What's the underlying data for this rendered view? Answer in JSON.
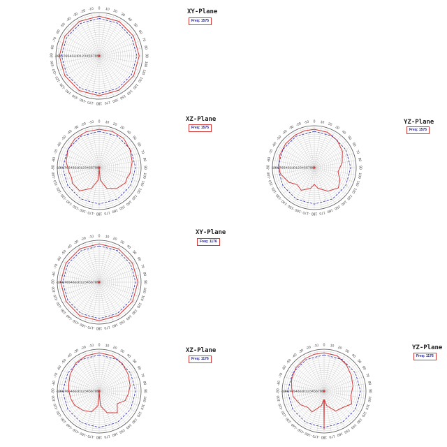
{
  "chart_data": [
    {
      "type": "polar-line",
      "title": "XY-Plane",
      "freq_label": "Freq: 1575",
      "angle_labels": [
        "0",
        "10",
        "20",
        "30",
        "40",
        "50",
        "60",
        "70",
        "80",
        "90",
        "100",
        "110",
        "120",
        "130",
        "140",
        "150",
        "160",
        "170",
        "180",
        "-170",
        "-160",
        "-150",
        "-140",
        "-130",
        "-120",
        "-110",
        "-100",
        "-90",
        "-80",
        "-70",
        "-60",
        "-50",
        "-40",
        "-30",
        "-20",
        "-10"
      ],
      "radial_labels": [
        "-10",
        "-9",
        "-8",
        "-7",
        "-6",
        "-5",
        "-4",
        "-3",
        "-2",
        "-1",
        "0",
        "1",
        "2",
        "3",
        "4",
        "5",
        "6",
        "7",
        "8",
        "9"
      ],
      "rlim": [
        -10,
        10
      ],
      "grid": true,
      "series": [
        {
          "color": "#d23a3a",
          "style": "solid",
          "angles_deg": [
            0,
            30,
            60,
            90,
            120,
            150,
            180,
            210,
            240,
            270,
            300,
            330
          ],
          "gain_dBi": [
            8.3,
            8.4,
            8.3,
            8.5,
            8.4,
            8.3,
            8.4,
            8.5,
            8.3,
            8.4,
            8.3,
            8.4
          ]
        },
        {
          "color": "#2a2aa5",
          "style": "dashed",
          "angles_deg": [
            0,
            30,
            60,
            90,
            120,
            150,
            180,
            210,
            240,
            270,
            300,
            330
          ],
          "gain_dBi": [
            7.3,
            7.4,
            7.3,
            7.4,
            7.3,
            7.3,
            7.4,
            7.3,
            7.3,
            7.4,
            7.3,
            7.3
          ]
        }
      ]
    },
    {
      "type": "polar-line",
      "title": "XZ-Plane",
      "freq_label": "Freq: 1575",
      "angle_labels": [
        "0",
        "10",
        "20",
        "30",
        "40",
        "50",
        "60",
        "70",
        "80",
        "90",
        "100",
        "110",
        "120",
        "130",
        "140",
        "150",
        "160",
        "170",
        "180",
        "-170",
        "-160",
        "-150",
        "-140",
        "-130",
        "-120",
        "-110",
        "-100",
        "-90",
        "-80",
        "-70",
        "-60",
        "-50",
        "-40",
        "-30",
        "-20",
        "-10"
      ],
      "radial_labels": [
        "-10",
        "-9",
        "-8",
        "-7",
        "-6",
        "-5",
        "-4",
        "-3",
        "-2",
        "-1",
        "0",
        "1",
        "2",
        "3",
        "4",
        "5",
        "6",
        "7",
        "8",
        "9"
      ],
      "rlim": [
        -10,
        10
      ],
      "grid": true,
      "series": [
        {
          "color": "#d23a3a",
          "style": "solid",
          "angles_deg": [
            0,
            20,
            40,
            60,
            80,
            100,
            110,
            120,
            140,
            160,
            175,
            180,
            185,
            200,
            220,
            240,
            250,
            260,
            280,
            300,
            320,
            340
          ],
          "gain_dBi": [
            8.3,
            8.4,
            8.2,
            7.0,
            6.0,
            5.0,
            4.2,
            4.5,
            3.0,
            0.5,
            -4.0,
            -9.5,
            -4.0,
            0.5,
            4.5,
            4.8,
            4.0,
            4.5,
            6.0,
            7.2,
            8.0,
            8.2
          ]
        },
        {
          "color": "#2a2aa5",
          "style": "dashed",
          "angles_deg": [
            0,
            30,
            60,
            90,
            120,
            150,
            180,
            210,
            240,
            270,
            300,
            330
          ],
          "gain_dBi": [
            7.3,
            7.4,
            7.3,
            7.4,
            7.3,
            7.3,
            7.4,
            7.3,
            7.3,
            7.4,
            7.3,
            7.3
          ]
        }
      ]
    },
    {
      "type": "polar-line",
      "title": "YZ-Plane",
      "freq_label": "Freq: 1575",
      "angle_labels": [
        "0",
        "10",
        "20",
        "30",
        "40",
        "50",
        "60",
        "70",
        "80",
        "90",
        "100",
        "110",
        "120",
        "130",
        "140",
        "150",
        "160",
        "170",
        "180",
        "-170",
        "-160",
        "-150",
        "-140",
        "-130",
        "-120",
        "-110",
        "-100",
        "-90",
        "-80",
        "-70",
        "-60",
        "-50",
        "-40",
        "-30",
        "-20",
        "-10"
      ],
      "radial_labels": [
        "-10",
        "-9",
        "-8",
        "-7",
        "-6",
        "-5",
        "-4",
        "-3",
        "-2",
        "-1",
        "0",
        "1",
        "2",
        "3",
        "4",
        "5",
        "6",
        "7",
        "8",
        "9"
      ],
      "rlim": [
        -10,
        10
      ],
      "grid": true,
      "series": [
        {
          "color": "#d23a3a",
          "style": "solid",
          "angles_deg": [
            0,
            20,
            40,
            60,
            80,
            100,
            115,
            130,
            150,
            170,
            180,
            190,
            210,
            225,
            240,
            260,
            275,
            290,
            310,
            330,
            345
          ],
          "gain_dBi": [
            8.3,
            8.0,
            7.0,
            5.5,
            3.5,
            1.5,
            3.5,
            5.0,
            3.0,
            0.0,
            -2.0,
            0.0,
            2.5,
            1.5,
            4.0,
            6.5,
            7.0,
            7.5,
            7.8,
            8.0,
            8.2
          ]
        },
        {
          "color": "#2a2aa5",
          "style": "dashed",
          "angles_deg": [
            0,
            30,
            60,
            90,
            120,
            150,
            180,
            210,
            240,
            270,
            300,
            330
          ],
          "gain_dBi": [
            7.3,
            7.4,
            7.3,
            7.4,
            7.3,
            7.3,
            7.4,
            7.3,
            7.3,
            7.4,
            7.3,
            7.3
          ]
        }
      ]
    },
    {
      "type": "polar-line",
      "title": "XY-Plane",
      "freq_label": "Freq: 1176",
      "angle_labels": [
        "0",
        "10",
        "20",
        "30",
        "40",
        "50",
        "60",
        "70",
        "80",
        "90",
        "100",
        "110",
        "120",
        "130",
        "140",
        "150",
        "160",
        "170",
        "180",
        "-170",
        "-160",
        "-150",
        "-140",
        "-130",
        "-120",
        "-110",
        "-100",
        "-90",
        "-80",
        "-70",
        "-60",
        "-50",
        "-40",
        "-30",
        "-20",
        "-10"
      ],
      "radial_labels": [
        "-10",
        "-9",
        "-8",
        "-7",
        "-6",
        "-5",
        "-4",
        "-3",
        "-2",
        "-1",
        "0",
        "1",
        "2",
        "3",
        "4",
        "5",
        "6",
        "7",
        "8",
        "9"
      ],
      "rlim": [
        -10,
        10
      ],
      "grid": true,
      "series": [
        {
          "color": "#d23a3a",
          "style": "solid",
          "angles_deg": [
            0,
            30,
            60,
            90,
            120,
            150,
            180,
            210,
            240,
            270,
            300,
            330
          ],
          "gain_dBi": [
            8.3,
            8.4,
            8.3,
            8.5,
            8.4,
            8.3,
            8.4,
            8.5,
            8.3,
            8.4,
            8.3,
            8.4
          ]
        },
        {
          "color": "#2a2aa5",
          "style": "dashed",
          "angles_deg": [
            0,
            30,
            60,
            90,
            120,
            150,
            180,
            210,
            240,
            270,
            300,
            330
          ],
          "gain_dBi": [
            7.3,
            7.4,
            7.3,
            7.4,
            7.3,
            7.3,
            7.4,
            7.3,
            7.3,
            7.4,
            7.3,
            7.3
          ]
        }
      ]
    },
    {
      "type": "polar-line",
      "title": "XZ-Plane",
      "freq_label": "Freq: 1176",
      "angle_labels": [
        "0",
        "10",
        "20",
        "30",
        "40",
        "50",
        "60",
        "70",
        "80",
        "90",
        "100",
        "110",
        "120",
        "130",
        "140",
        "150",
        "160",
        "170",
        "180",
        "-170",
        "-160",
        "-150",
        "-140",
        "-130",
        "-120",
        "-110",
        "-100",
        "-90",
        "-80",
        "-70",
        "-60",
        "-50",
        "-40",
        "-30",
        "-20",
        "-10"
      ],
      "radial_labels": [
        "-10",
        "-9",
        "-8",
        "-7",
        "-6",
        "-5",
        "-4",
        "-3",
        "-2",
        "-1",
        "0",
        "1",
        "2",
        "3",
        "4",
        "5",
        "6",
        "7",
        "8",
        "9"
      ],
      "rlim": [
        -10,
        10
      ],
      "grid": true,
      "series": [
        {
          "color": "#d23a3a",
          "style": "solid",
          "angles_deg": [
            0,
            20,
            40,
            60,
            80,
            95,
            110,
            125,
            140,
            160,
            175,
            180,
            185,
            200,
            220,
            240,
            255,
            270,
            285,
            300,
            320,
            340
          ],
          "gain_dBi": [
            8.3,
            8.0,
            7.2,
            6.0,
            5.0,
            4.0,
            3.2,
            0.5,
            3.5,
            1.0,
            -3.0,
            -9.5,
            -3.0,
            0.5,
            2.0,
            3.5,
            4.0,
            4.5,
            5.0,
            6.0,
            7.5,
            8.0
          ]
        },
        {
          "color": "#2a2aa5",
          "style": "dashed",
          "angles_deg": [
            0,
            30,
            60,
            90,
            120,
            150,
            180,
            210,
            240,
            270,
            300,
            330
          ],
          "gain_dBi": [
            7.3,
            7.4,
            7.3,
            7.4,
            7.3,
            7.3,
            7.4,
            7.3,
            7.3,
            7.4,
            7.3,
            7.3
          ]
        }
      ]
    },
    {
      "type": "polar-line",
      "title": "YZ-Plane",
      "freq_label": "Freq: 1176",
      "angle_labels": [
        "0",
        "10",
        "20",
        "30",
        "40",
        "50",
        "60",
        "70",
        "80",
        "90",
        "100",
        "110",
        "120",
        "130",
        "140",
        "150",
        "160",
        "170",
        "180",
        "-170",
        "-160",
        "-150",
        "-140",
        "-130",
        "-120",
        "-110",
        "-100",
        "-90",
        "-80",
        "-70",
        "-60",
        "-50",
        "-40",
        "-30",
        "-20",
        "-10"
      ],
      "radial_labels": [
        "-10",
        "-9",
        "-8",
        "-7",
        "-6",
        "-5",
        "-4",
        "-3",
        "-2",
        "-1",
        "0",
        "1",
        "2",
        "3",
        "4",
        "5",
        "6",
        "7",
        "8",
        "9"
      ],
      "rlim": [
        -10,
        10
      ],
      "grid": true,
      "series": [
        {
          "color": "#d23a3a",
          "style": "solid",
          "angles_deg": [
            0,
            20,
            40,
            60,
            80,
            100,
            115,
            130,
            150,
            170,
            178,
            180,
            182,
            190,
            210,
            225,
            240,
            260,
            275,
            290,
            310,
            330,
            345
          ],
          "gain_dBi": [
            8.3,
            8.0,
            6.5,
            5.0,
            4.0,
            3.0,
            4.5,
            2.0,
            1.0,
            -3.0,
            -6.0,
            8.3,
            -6.0,
            -3.0,
            1.5,
            1.0,
            3.0,
            5.0,
            5.5,
            6.5,
            7.5,
            8.0,
            8.2
          ]
        },
        {
          "color": "#2a2aa5",
          "style": "dashed",
          "angles_deg": [
            0,
            30,
            60,
            90,
            120,
            150,
            180,
            210,
            240,
            270,
            300,
            330
          ],
          "gain_dBi": [
            7.3,
            7.4,
            7.3,
            7.4,
            7.3,
            7.3,
            7.4,
            7.3,
            7.3,
            7.4,
            7.3,
            7.3
          ]
        }
      ]
    }
  ]
}
